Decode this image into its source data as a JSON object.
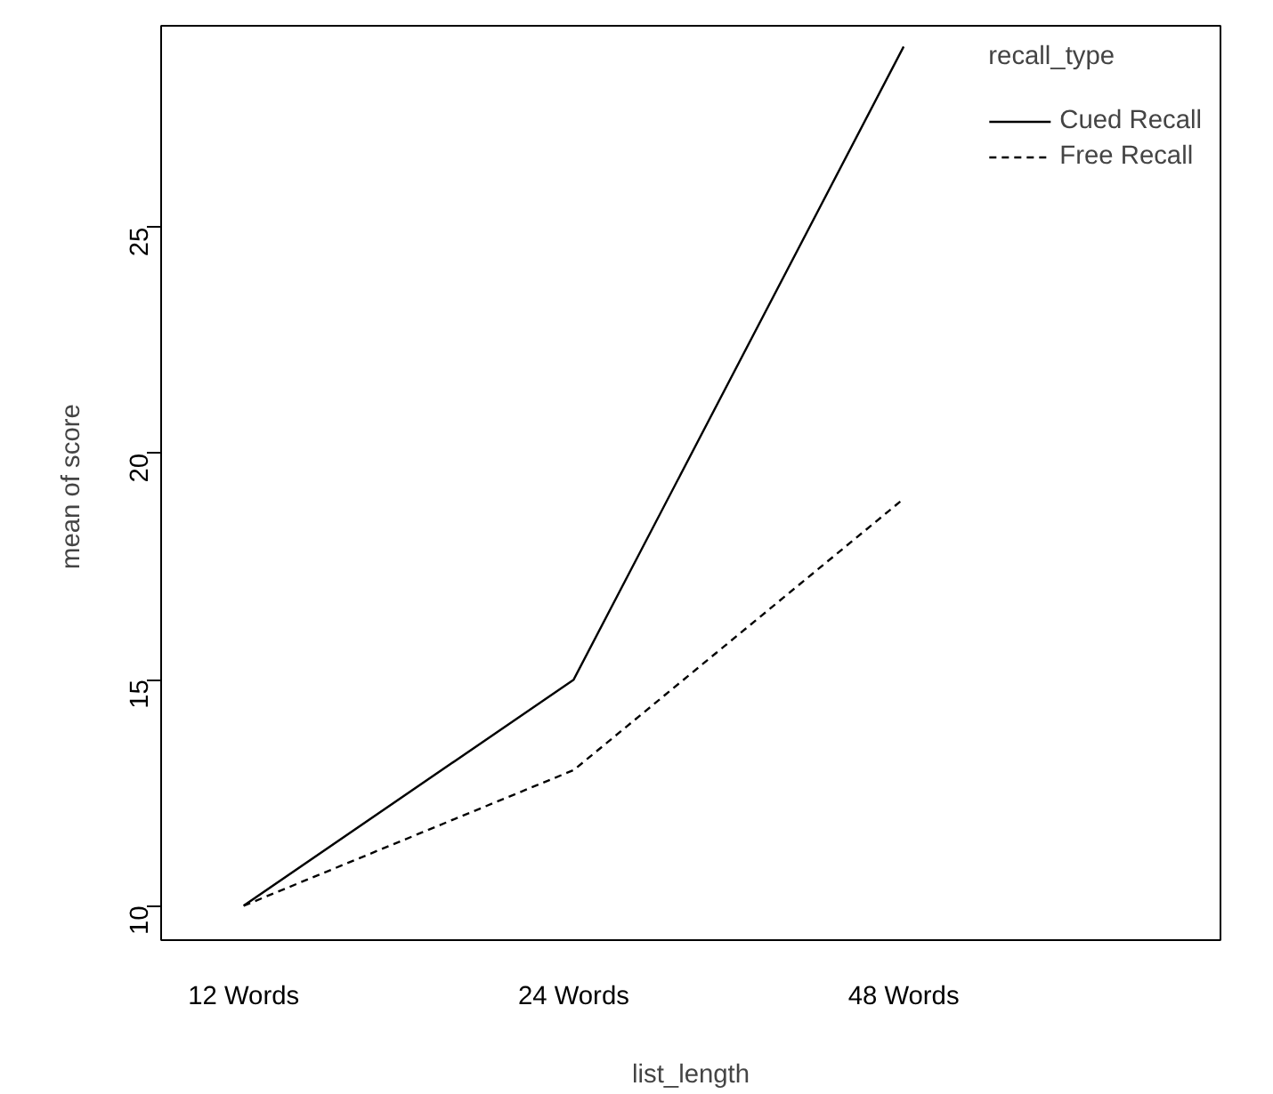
{
  "chart_data": {
    "type": "line",
    "xlabel": "list_length",
    "ylabel": "mean of  score",
    "legend_title": "recall_type",
    "categories": [
      "12 Words",
      "24 Words",
      "48 Words"
    ],
    "series": [
      {
        "name": "Cued Recall",
        "color": "#000000",
        "values": [
          10,
          15,
          29
        ],
        "line_style": "solid"
      },
      {
        "name": "Free Recall",
        "color": "#000000",
        "values": [
          10,
          13,
          19
        ],
        "line_style": "dashed"
      }
    ],
    "ylim": [
      9.24,
      29.46
    ],
    "yticks": [
      10,
      15,
      20,
      25
    ],
    "grid": false,
    "legend": "top right",
    "marker": "none"
  }
}
